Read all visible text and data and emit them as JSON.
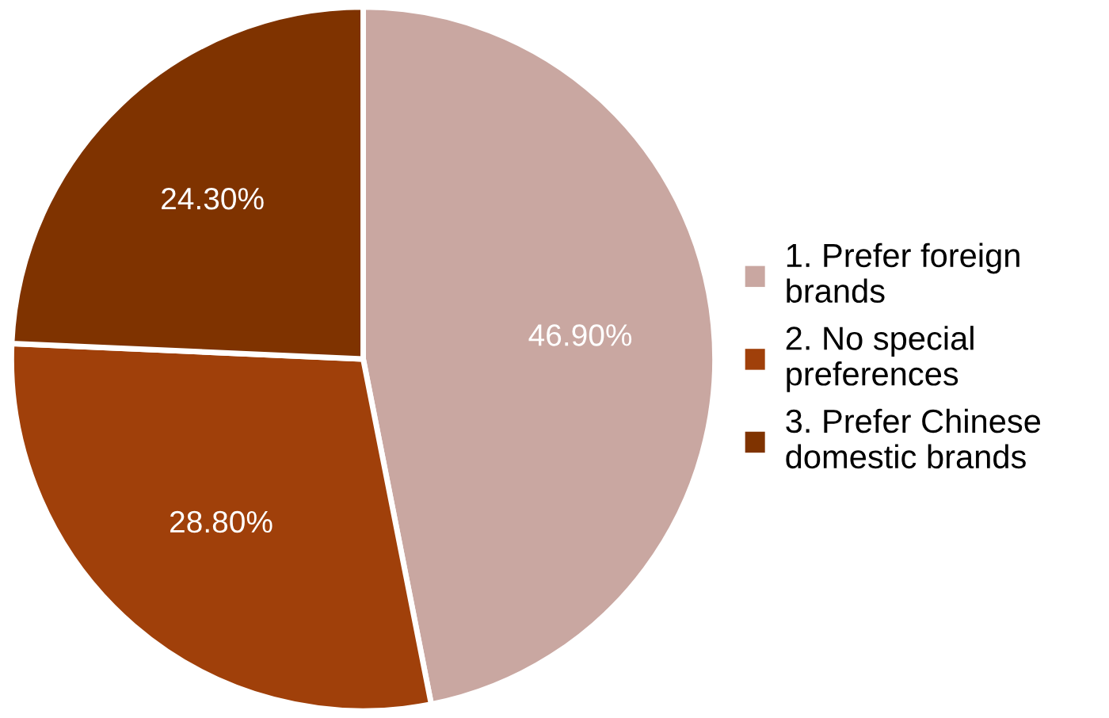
{
  "chart_data": {
    "type": "pie",
    "categories": [
      "1. Prefer foreign brands",
      "2. No special preferences",
      "3. Prefer Chinese domestic brands"
    ],
    "values": [
      46.9,
      28.8,
      24.3
    ],
    "value_labels": [
      "46.90%",
      "28.80%",
      "24.30%"
    ],
    "colors": [
      "#c9a7a1",
      "#a0400a",
      "#7f3300"
    ],
    "legend": "right"
  }
}
